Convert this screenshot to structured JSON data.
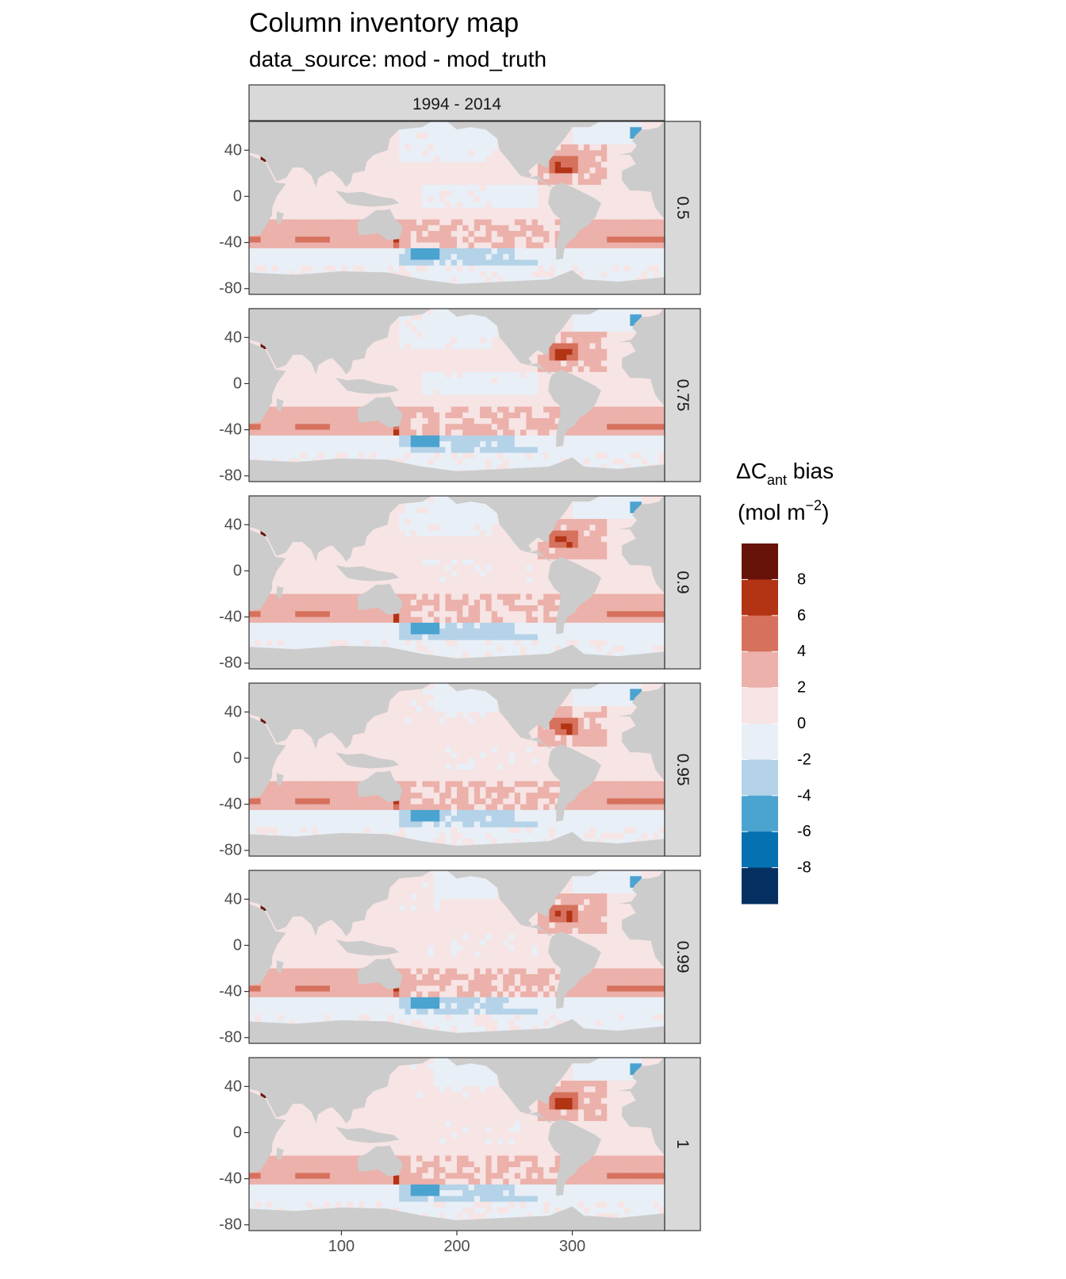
{
  "title": "Column inventory map",
  "subtitle": "data_source: mod - mod_truth",
  "column_strip": "1994 - 2014",
  "colors": {
    "land": "#cccccc",
    "strip": "#d9d9d9",
    "panel_border": "#333333",
    "bins": [
      "#053061",
      "#0571b0",
      "#4ba3d0",
      "#b4d2e8",
      "#e8eff6",
      "#f7e4e4",
      "#ebb1aa",
      "#d6715d",
      "#b33415",
      "#67130a"
    ]
  },
  "legend": {
    "title_main": "ΔC",
    "title_sub": "ant",
    "title_rest": " bias",
    "unit_prefix": "(mol m",
    "unit_sup": "−2",
    "unit_suffix": ")",
    "breaks": [
      "8",
      "6",
      "4",
      "2",
      "0",
      "-2",
      "-4",
      "-6",
      "-8"
    ]
  },
  "chart_data": {
    "type": "heatmap",
    "title": "Column inventory map",
    "subtitle": "data_source: mod - mod_truth",
    "facet_column": "1994 - 2014",
    "facet_rows": [
      "0.5",
      "0.75",
      "0.9",
      "0.95",
      "0.99",
      "1"
    ],
    "xlim": [
      20,
      380
    ],
    "ylim": [
      -85,
      65
    ],
    "x_ticks": [
      "100",
      "200",
      "300"
    ],
    "x_tick_values": [
      100,
      200,
      300
    ],
    "y_ticks": [
      "40",
      "0",
      "-40",
      "-80"
    ],
    "y_tick_values": [
      40,
      0,
      -40,
      -80
    ],
    "color_bins": [
      -10,
      -8,
      -6,
      -4,
      -2,
      0,
      2,
      4,
      6,
      8,
      10
    ],
    "legend_title": "ΔCant bias (mol m−2)"
  }
}
